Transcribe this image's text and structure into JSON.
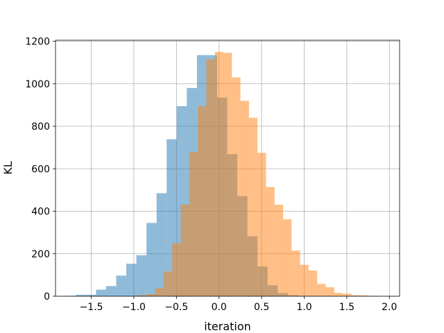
{
  "chart_data": {
    "type": "bar",
    "title": "",
    "xlabel": "iteration",
    "ylabel": "KL",
    "xlim": [
      -1.92,
      2.12
    ],
    "ylim": [
      0,
      1205
    ],
    "xticks": [
      -1.5,
      -1.0,
      -0.5,
      0.0,
      0.5,
      1.0,
      1.5,
      2.0
    ],
    "xtick_labels": [
      "−1.5",
      "−1.0",
      "−0.5",
      "0.0",
      "0.5",
      "1.0",
      "1.5",
      "2.0"
    ],
    "yticks": [
      0,
      200,
      400,
      600,
      800,
      1000,
      1200
    ],
    "ytick_labels": [
      "0",
      "200",
      "400",
      "600",
      "800",
      "1000",
      "1200"
    ],
    "grid": true,
    "legend": null,
    "series": [
      {
        "color": "#1f77b4",
        "alpha": 0.5,
        "bin_start": -1.8,
        "bin_width": 0.1185,
        "counts": [
          2,
          7,
          7,
          31,
          48,
          97,
          153,
          193,
          345,
          485,
          739,
          895,
          980,
          1135,
          1135,
          935,
          669,
          471,
          282,
          140,
          52,
          15,
          5,
          1,
          1,
          0,
          0,
          0,
          0,
          0
        ]
      },
      {
        "color": "#ff7f0e",
        "alpha": 0.5,
        "bin_start": -1.05,
        "bin_width": 0.1001,
        "counts": [
          2,
          5,
          10,
          38,
          116,
          249,
          431,
          680,
          895,
          1115,
          1150,
          1146,
          1030,
          920,
          840,
          675,
          514,
          431,
          362,
          215,
          148,
          121,
          58,
          42,
          16,
          12,
          5,
          4,
          2,
          1
        ]
      }
    ]
  }
}
